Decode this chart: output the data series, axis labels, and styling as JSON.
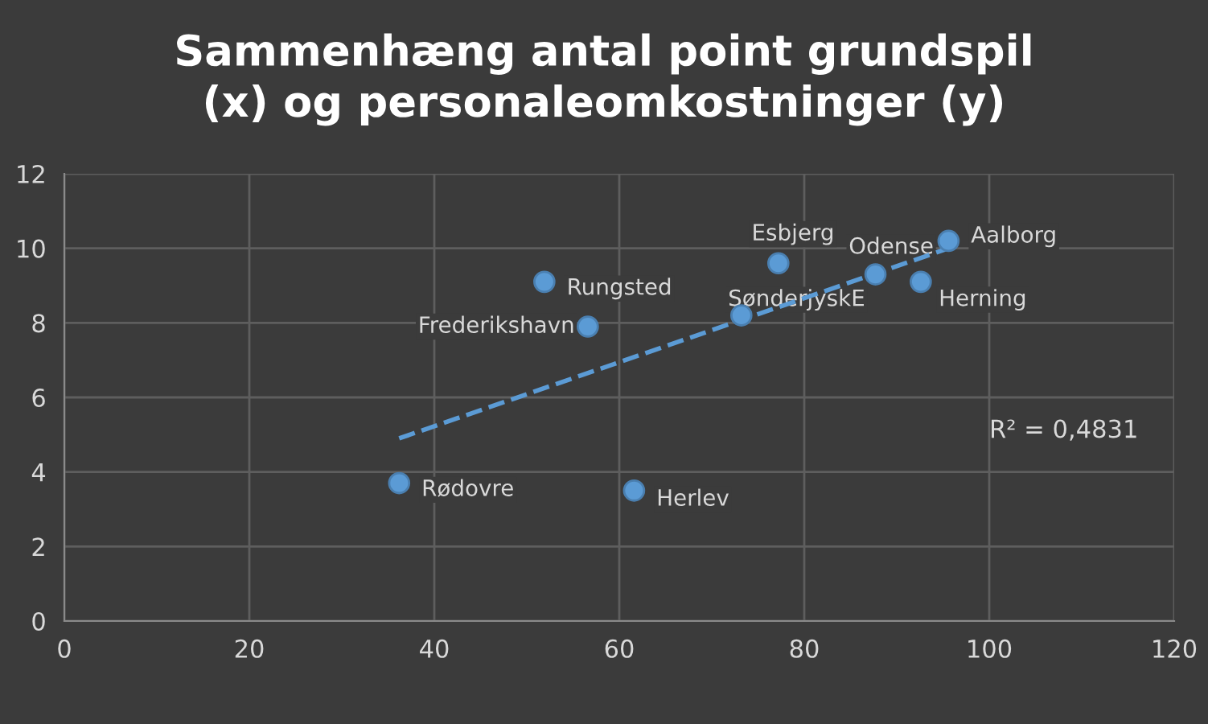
{
  "chart_data": {
    "type": "scatter",
    "title": "Sammenhæng antal point grundspil\n(x) og personaleomkostninger (y)",
    "series": [
      {
        "type": "scatter",
        "color": "#5b9bd5",
        "marker": "circle",
        "x": [
          95.6,
          77.2,
          87.7,
          92.6,
          73.2,
          56.6,
          51.9,
          36.2,
          61.6
        ],
        "values": [
          10.2,
          9.6,
          9.3,
          9.1,
          8.2,
          7.9,
          9.1,
          3.7,
          3.5
        ]
      },
      {
        "type": "line",
        "color": "#5b9bd5",
        "line_style": "dashed",
        "marker": "none",
        "x": [
          36.2,
          95.6
        ],
        "values": [
          4.9,
          10.0
        ]
      }
    ],
    "annotations": [
      {
        "text": "Aalborg",
        "x": 95.6,
        "y": 10.2
      },
      {
        "text": "Esbjerg",
        "x": 77.2,
        "y": 9.6
      },
      {
        "text": "Odense",
        "x": 87.7,
        "y": 9.3
      },
      {
        "text": "Herning",
        "x": 92.6,
        "y": 9.1
      },
      {
        "text": "SønderjyskE",
        "x": 73.2,
        "y": 8.2
      },
      {
        "text": "Frederikshavn",
        "x": 56.6,
        "y": 7.9
      },
      {
        "text": "Rungsted",
        "x": 51.9,
        "y": 9.1
      },
      {
        "text": "Rødovre",
        "x": 36.2,
        "y": 3.7
      },
      {
        "text": "Herlev",
        "x": 61.6,
        "y": 3.5
      },
      "R² = 0,4831"
    ],
    "xlim": [
      0,
      120
    ],
    "xticks": [
      0,
      20,
      40,
      60,
      80,
      100,
      120
    ],
    "ylim": [
      0,
      12
    ],
    "yticks": [
      0,
      2,
      4,
      6,
      8,
      10,
      12
    ],
    "grid": true,
    "legend": false
  }
}
